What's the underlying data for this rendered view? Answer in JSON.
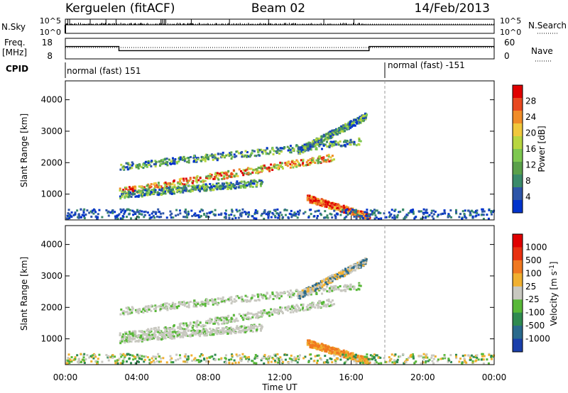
{
  "header": {
    "station": "Kerguelen (fitACF)",
    "beam": "Beam 02",
    "date": "14/Feb/2013"
  },
  "noise_panel": {
    "left_label": "N.Sky",
    "right_label": "N.Search",
    "left_ticks": [
      "10^5",
      "10^0"
    ],
    "right_ticks": [
      "10^5",
      "10^0"
    ],
    "right_legend_style": "dotted"
  },
  "freq_panel": {
    "left_label_line1": "Freq.",
    "left_label_line2": "[MHz]",
    "left_ticks": [
      "18",
      "8"
    ],
    "right_label": "Nave",
    "right_ticks": [
      "60",
      "0"
    ],
    "right_legend_style": "dotted"
  },
  "cpid_panel": {
    "label": "CPID",
    "modes": [
      {
        "text": "normal (fast) 151"
      },
      {
        "text": "normal (fast) -151"
      }
    ]
  },
  "power_panel": {
    "ylabel": "Slant Range [km]",
    "yticks": [
      "4000",
      "3000",
      "2000",
      "1000"
    ],
    "colorbar_label": "Power [dB]",
    "colorbar_ticks": [
      "28",
      "24",
      "20",
      "16",
      "12",
      "8",
      "4"
    ],
    "colors": [
      "#0033cc",
      "#2d55a8",
      "#3a8a6a",
      "#5aa04a",
      "#7ec850",
      "#b8d640",
      "#f0c83c",
      "#f08c28",
      "#e84820",
      "#e00000"
    ]
  },
  "velocity_panel": {
    "ylabel": "Slant Range [km]",
    "yticks": [
      "4000",
      "3000",
      "2000",
      "1000"
    ],
    "colorbar_label": "Velocity [m s^-1]",
    "colorbar_ticks": [
      "1000",
      "500",
      "100",
      "25",
      "-25",
      "-100",
      "-500",
      "-1000"
    ],
    "colors": [
      "#1a3faa",
      "#2a6a8c",
      "#2f8a50",
      "#58b838",
      "#c8c8c0",
      "#f0b030",
      "#f07820",
      "#e83010",
      "#e00000"
    ]
  },
  "xaxis": {
    "label": "Time UT",
    "ticks": [
      "00:00",
      "04:00",
      "08:00",
      "12:00",
      "16:00",
      "20:00",
      "00:00"
    ]
  },
  "chart_data": {
    "type": "heatmap",
    "x_range_hours": [
      0,
      24
    ],
    "y_range_km": [
      180,
      4600
    ],
    "mode_change_hour": 18,
    "frequency_mhz": [
      {
        "from": 0,
        "to": 3,
        "value": 14
      },
      {
        "from": 3,
        "to": 17,
        "value": 12
      },
      {
        "from": 17,
        "to": 24,
        "value": 14
      }
    ],
    "echo_regions": [
      {
        "name": "upper band",
        "from": 3,
        "to": 16.5,
        "range_start_km": 1900,
        "range_end_km": 2700
      },
      {
        "name": "main band",
        "from": 3,
        "to": 15,
        "range_start_km": 1100,
        "range_end_km": 2200
      },
      {
        "name": "lower band",
        "from": 3,
        "to": 11,
        "range_start_km": 1000,
        "range_end_km": 1400
      },
      {
        "name": "descending branch",
        "from": 13.5,
        "to": 17,
        "range_start_km": 900,
        "range_end_km": 300
      },
      {
        "name": "rising arc",
        "from": 13,
        "to": 16.8,
        "range_start_km": 2400,
        "range_end_km": 3500
      },
      {
        "name": "near-range clutter",
        "from": 0,
        "to": 24,
        "range_start_km": 200,
        "range_end_km": 550
      }
    ]
  }
}
